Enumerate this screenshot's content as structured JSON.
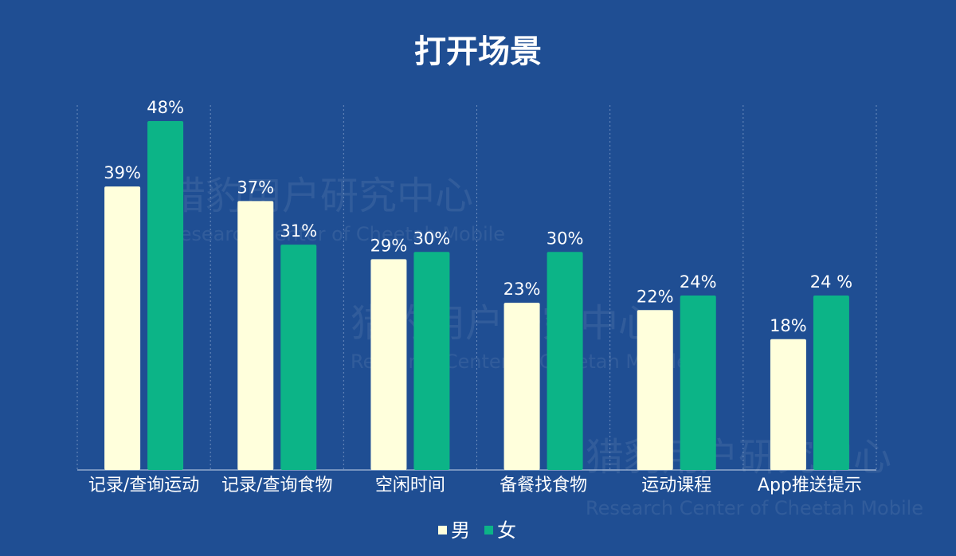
{
  "colors": {
    "background": "#1f4e93",
    "male": "#ffffdc",
    "female": "#0cb487"
  },
  "watermark": {
    "logo_cn": "猎豹用户研究中心",
    "logo_en": "Research Center of Cheetah Mobile"
  },
  "chart_data": {
    "type": "bar",
    "title": "打开场景",
    "categories": [
      "记录/查询运动",
      "记录/查询食物",
      "空闲时间",
      "备餐找食物",
      "运动课程",
      "App推送提示"
    ],
    "series": [
      {
        "name": "男",
        "values": [
          39,
          37,
          29,
          23,
          22,
          18
        ],
        "labels": [
          "39%",
          "37%",
          "29%",
          "23%",
          "22%",
          "18%"
        ]
      },
      {
        "name": "女",
        "values": [
          48,
          31,
          30,
          30,
          24,
          24
        ],
        "labels": [
          "48%",
          "31%",
          "30%",
          "30%",
          "24%",
          "24 %"
        ]
      }
    ],
    "ylim": [
      0,
      48
    ],
    "grid": "vertical dashed",
    "legend": "bottom-center"
  }
}
